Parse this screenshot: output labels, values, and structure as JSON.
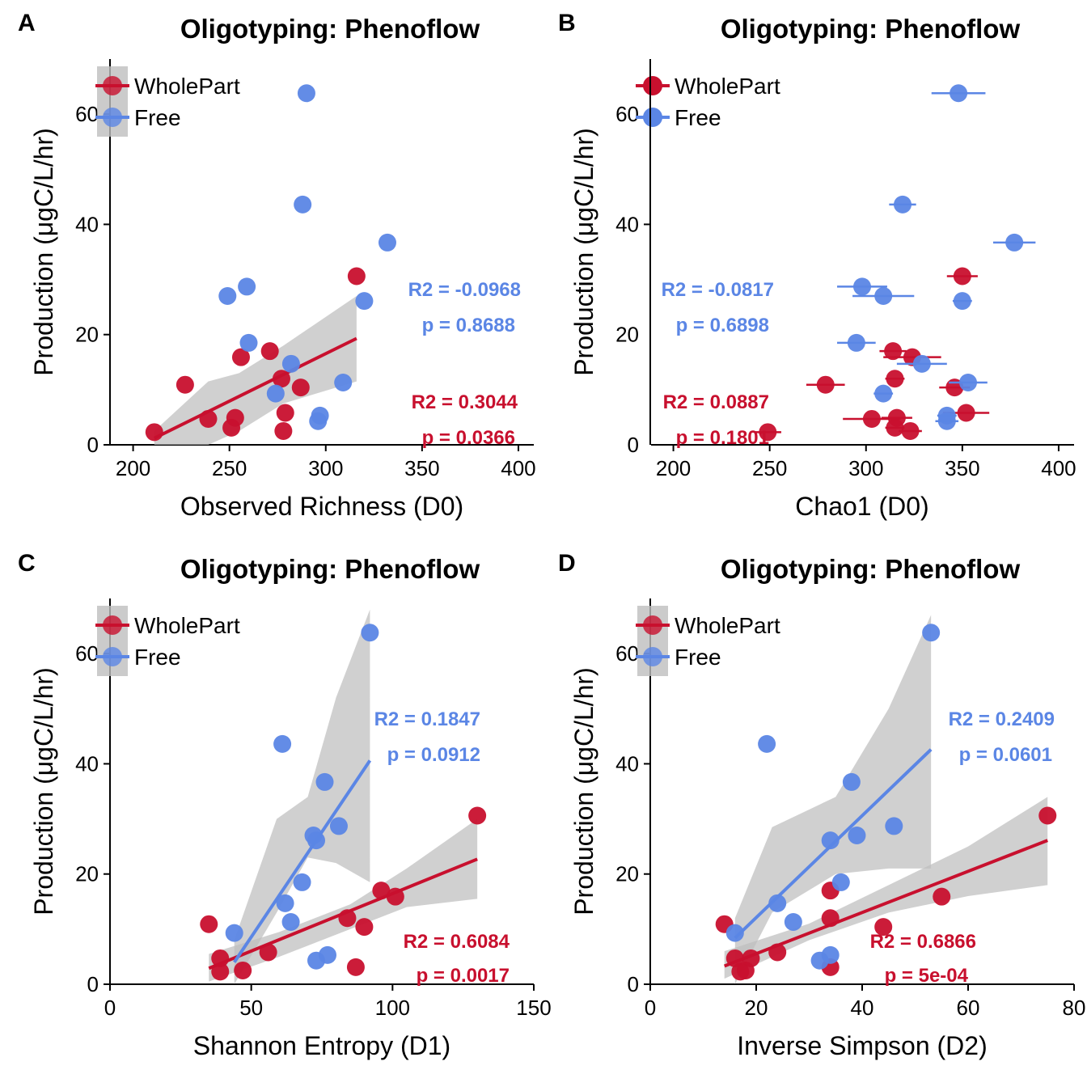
{
  "colors": {
    "wholepart": "#C8102E",
    "free": "#5B86E5",
    "ci": "#BEBEBE"
  },
  "chart_data": [
    {
      "id": "A",
      "panel_label": "A",
      "type": "scatter",
      "title": "Oligotyping: Phenoflow",
      "xlabel": "Observed Richness (D0)",
      "ylabel": "Production (μgC/L/hr)",
      "xlim": [
        188,
        408
      ],
      "ylim": [
        0,
        70
      ],
      "xticks": [
        200,
        250,
        300,
        350,
        400
      ],
      "yticks": [
        0,
        20,
        40,
        60
      ],
      "legend": {
        "position": "top-left",
        "shaded": true,
        "entries": [
          "WholePart",
          "Free"
        ]
      },
      "series": [
        {
          "name": "WholePart",
          "points": [
            [
              211,
              2.3
            ],
            [
              227,
              10.9
            ],
            [
              239,
              4.7
            ],
            [
              251,
              3.1
            ],
            [
              253,
              4.9
            ],
            [
              256,
              15.9
            ],
            [
              271,
              17
            ],
            [
              277,
              12
            ],
            [
              278,
              2.5
            ],
            [
              279,
              5.8
            ],
            [
              287,
              10.4
            ],
            [
              316,
              30.6
            ]
          ],
          "fit": {
            "x0": 211,
            "y0": 1.2,
            "x1": 316,
            "y1": 19.3
          },
          "ci": {
            "x": [
              211,
              239,
              255,
              278,
              316
            ],
            "lo": [
              0,
              0,
              2.5,
              7.5,
              11.5
            ],
            "hi": [
              2.5,
              11.5,
              13,
              18,
              27
            ]
          }
        },
        {
          "name": "Free",
          "points": [
            [
              249,
              27
            ],
            [
              259,
              28.7
            ],
            [
              260,
              18.5
            ],
            [
              274,
              9.3
            ],
            [
              282,
              14.7
            ],
            [
              288,
              43.6
            ],
            [
              290,
              63.8
            ],
            [
              296,
              4.3
            ],
            [
              297,
              5.3
            ],
            [
              309,
              11.3
            ],
            [
              320,
              26.1
            ],
            [
              332,
              36.7
            ]
          ]
        }
      ],
      "annotations": [
        {
          "series": "Free",
          "line1": "R2 = -0.0968",
          "line2": "p = 0.8688"
        },
        {
          "series": "WholePart",
          "line1": "R2 = 0.3044",
          "line2": "p = 0.0366"
        }
      ]
    },
    {
      "id": "B",
      "panel_label": "B",
      "type": "scatter",
      "title": "Oligotyping: Phenoflow",
      "xlabel": "Chao1 (D0)",
      "ylabel": "Production (μgC/L/hr)",
      "xlim": [
        188,
        408
      ],
      "ylim": [
        0,
        70
      ],
      "xticks": [
        200,
        250,
        300,
        350,
        400
      ],
      "yticks": [
        0,
        20,
        40,
        60
      ],
      "legend": {
        "position": "top-left",
        "shaded": false,
        "entries": [
          "WholePart",
          "Free"
        ]
      },
      "series": [
        {
          "name": "WholePart",
          "points": [
            [
              249,
              2.3,
              7
            ],
            [
              279,
              10.9,
              10
            ],
            [
              303,
              4.7,
              15
            ],
            [
              314,
              17,
              7
            ],
            [
              315,
              12,
              5
            ],
            [
              315,
              3.1,
              5
            ],
            [
              316,
              4.9,
              8
            ],
            [
              323,
              2.5,
              6
            ],
            [
              324,
              15.9,
              15
            ],
            [
              346,
              10.4,
              8
            ],
            [
              350,
              30.6,
              8
            ],
            [
              352,
              5.8,
              12
            ]
          ]
        },
        {
          "name": "Free",
          "points": [
            [
              295,
              18.5,
              10
            ],
            [
              298,
              28.7,
              13
            ],
            [
              309,
              27,
              16
            ],
            [
              309,
              9.3,
              5
            ],
            [
              319,
              43.6,
              7
            ],
            [
              329,
              14.7,
              13
            ],
            [
              342,
              5.3,
              5
            ],
            [
              342,
              4.3,
              6
            ],
            [
              348,
              63.8,
              14
            ],
            [
              350,
              26.1,
              5
            ],
            [
              353,
              11.3,
              10
            ],
            [
              377,
              36.7,
              11
            ]
          ]
        }
      ],
      "annotations": [
        {
          "series": "Free",
          "line1": "R2 = -0.0817",
          "line2": "p = 0.6898"
        },
        {
          "series": "WholePart",
          "line1": "R2 = 0.0887",
          "line2": "p = 0.1801"
        }
      ]
    },
    {
      "id": "C",
      "panel_label": "C",
      "type": "scatter",
      "title": "Oligotyping: Phenoflow",
      "xlabel": "Shannon Entropy (D1)",
      "ylabel": "Production (μgC/L/hr)",
      "xlim": [
        0,
        150
      ],
      "ylim": [
        0,
        70
      ],
      "xticks": [
        0,
        50,
        100,
        150
      ],
      "yticks": [
        0,
        20,
        40,
        60
      ],
      "legend": {
        "position": "top-left",
        "shaded": true,
        "entries": [
          "WholePart",
          "Free"
        ]
      },
      "series": [
        {
          "name": "WholePart",
          "points": [
            [
              35,
              10.9
            ],
            [
              39,
              2.3
            ],
            [
              39,
              4.7
            ],
            [
              47,
              2.5
            ],
            [
              56,
              5.8
            ],
            [
              84,
              12
            ],
            [
              87,
              3.1
            ],
            [
              90,
              10.4
            ],
            [
              96,
              17
            ],
            [
              101,
              15.9
            ],
            [
              130,
              30.6
            ]
          ],
          "fit": {
            "x0": 35,
            "y0": 2.9,
            "x1": 130,
            "y1": 22.7
          },
          "ci": {
            "x": [
              35,
              60,
              85,
              105,
              130
            ],
            "lo": [
              0.5,
              5,
              10,
              14,
              15.5
            ],
            "hi": [
              5.5,
              9.5,
              14.5,
              21,
              30
            ]
          }
        },
        {
          "name": "Free",
          "points": [
            [
              44,
              9.3
            ],
            [
              62,
              14.7
            ],
            [
              61,
              43.6
            ],
            [
              64,
              11.3
            ],
            [
              68,
              18.5
            ],
            [
              72,
              27
            ],
            [
              73,
              26.1
            ],
            [
              73,
              4.3
            ],
            [
              76,
              36.7
            ],
            [
              77,
              5.3
            ],
            [
              81,
              28.7
            ],
            [
              92,
              63.8
            ]
          ],
          "fit": {
            "x0": 44,
            "y0": 4,
            "x1": 92,
            "y1": 40.6
          },
          "ci": {
            "x": [
              44,
              59,
              70,
              80,
              92
            ],
            "lo": [
              0,
              13,
              23,
              22,
              18.5
            ],
            "hi": [
              8,
              30,
              34,
              52,
              68
            ]
          }
        }
      ],
      "annotations": [
        {
          "series": "Free",
          "line1": "R2 = 0.1847",
          "line2": "p = 0.0912"
        },
        {
          "series": "WholePart",
          "line1": "R2 = 0.6084",
          "line2": "p = 0.0017"
        }
      ]
    },
    {
      "id": "D",
      "panel_label": "D",
      "type": "scatter",
      "title": "Oligotyping: Phenoflow",
      "xlabel": "Inverse Simpson (D2)",
      "ylabel": "Production (μgC/L/hr)",
      "xlim": [
        0,
        80
      ],
      "ylim": [
        0,
        70
      ],
      "xticks": [
        0,
        20,
        40,
        60,
        80
      ],
      "yticks": [
        0,
        20,
        40,
        60
      ],
      "legend": {
        "position": "top-left",
        "shaded": true,
        "entries": [
          "WholePart",
          "Free"
        ]
      },
      "series": [
        {
          "name": "WholePart",
          "points": [
            [
              14,
              10.9
            ],
            [
              16,
              4.7
            ],
            [
              17,
              2.3
            ],
            [
              18,
              2.5
            ],
            [
              19,
              4.7
            ],
            [
              24,
              5.8
            ],
            [
              34,
              17
            ],
            [
              34,
              12
            ],
            [
              34,
              3.1
            ],
            [
              44,
              10.4
            ],
            [
              55,
              15.9
            ],
            [
              75,
              30.6
            ]
          ],
          "fit": {
            "x0": 14,
            "y0": 3.3,
            "x1": 75,
            "y1": 26.1
          },
          "ci": {
            "x": [
              14,
              30,
              45,
              60,
              75
            ],
            "lo": [
              1,
              8,
              13,
              16,
              18
            ],
            "hi": [
              6,
              11,
              18,
              25,
              34
            ]
          }
        },
        {
          "name": "Free",
          "points": [
            [
              16,
              9.3
            ],
            [
              22,
              43.6
            ],
            [
              24,
              14.7
            ],
            [
              27,
              11.3
            ],
            [
              32,
              4.3
            ],
            [
              34,
              5.3
            ],
            [
              34,
              26.1
            ],
            [
              36,
              18.5
            ],
            [
              38,
              36.7
            ],
            [
              39,
              27
            ],
            [
              46,
              28.7
            ],
            [
              53,
              63.8
            ]
          ],
          "fit": {
            "x0": 16,
            "y0": 8.4,
            "x1": 53,
            "y1": 42.6
          },
          "ci": {
            "x": [
              16,
              23,
              35,
              45,
              53
            ],
            "lo": [
              0,
              13,
              20,
              21,
              21
            ],
            "hi": [
              12,
              28.5,
              34,
              50,
              67
            ]
          }
        }
      ],
      "annotations": [
        {
          "series": "Free",
          "line1": "R2 = 0.2409",
          "line2": "p = 0.0601"
        },
        {
          "series": "WholePart",
          "line1": "R2 = 0.6866",
          "line2": "p = 5e-04"
        }
      ]
    }
  ]
}
